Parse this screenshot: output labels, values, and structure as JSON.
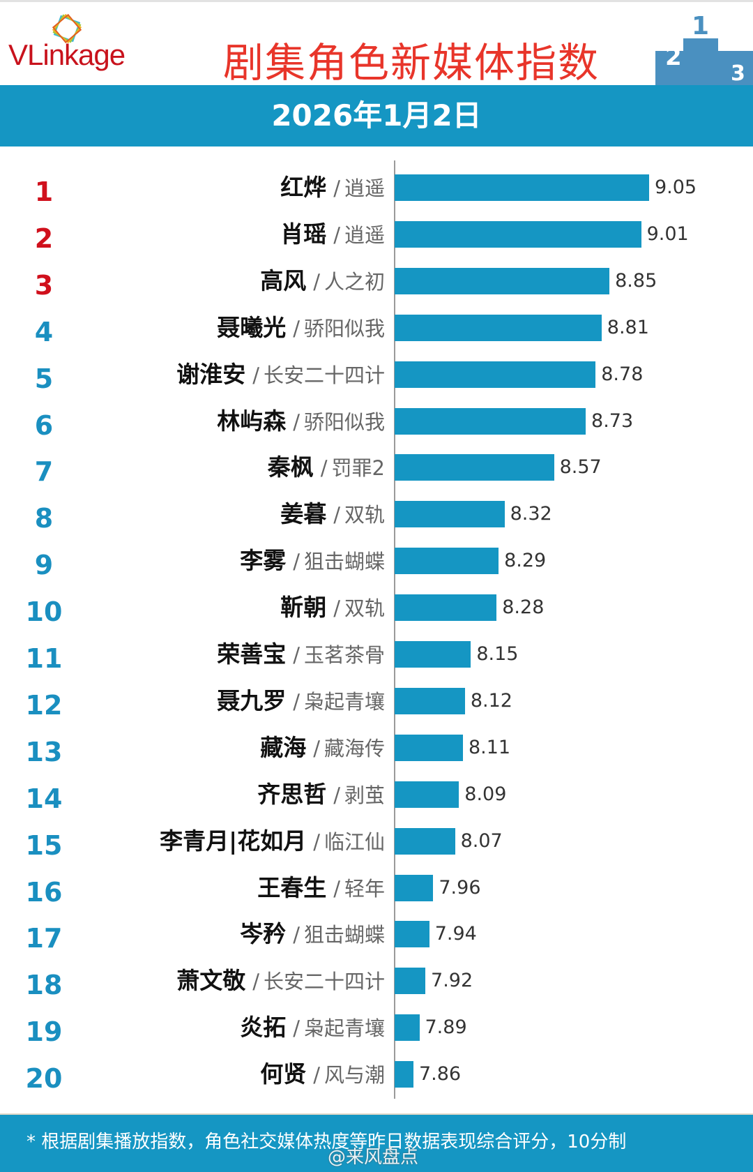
{
  "header": {
    "logo": "VLinkage",
    "title": "剧集角色新媒体指数",
    "date": "2026年1月2日"
  },
  "colors": {
    "accent_blue": "#1596c3",
    "title_red": "#e8352a",
    "top3_rank": "#d0101c",
    "rank_blue": "#1a8fc0"
  },
  "chart_data": {
    "type": "bar",
    "orientation": "horizontal",
    "rows": [
      {
        "rank": "1",
        "name": "红烨",
        "drama": "逍遥",
        "value": 9.05
      },
      {
        "rank": "2",
        "name": "肖瑶",
        "drama": "逍遥",
        "value": 9.01
      },
      {
        "rank": "3",
        "name": "高风",
        "drama": "人之初",
        "value": 8.85
      },
      {
        "rank": "4",
        "name": "聂曦光",
        "drama": "骄阳似我",
        "value": 8.81
      },
      {
        "rank": "5",
        "name": "谢淮安",
        "drama": "长安二十四计",
        "value": 8.78
      },
      {
        "rank": "6",
        "name": "林屿森",
        "drama": "骄阳似我",
        "value": 8.73
      },
      {
        "rank": "7",
        "name": "秦枫",
        "drama": "罚罪2",
        "value": 8.57
      },
      {
        "rank": "8",
        "name": "姜暮",
        "drama": "双轨",
        "value": 8.32
      },
      {
        "rank": "9",
        "name": "李雾",
        "drama": "狙击蝴蝶",
        "value": 8.29
      },
      {
        "rank": "10",
        "name": "靳朝",
        "drama": "双轨",
        "value": 8.28
      },
      {
        "rank": "11",
        "name": "荣善宝",
        "drama": "玉茗茶骨",
        "value": 8.15
      },
      {
        "rank": "12",
        "name": "聂九罗",
        "drama": "枭起青壤",
        "value": 8.12
      },
      {
        "rank": "13",
        "name": "藏海",
        "drama": "藏海传",
        "value": 8.11
      },
      {
        "rank": "14",
        "name": "齐思哲",
        "drama": "剥茧",
        "value": 8.09
      },
      {
        "rank": "15",
        "name": "李青月|花如月",
        "drama": "临江仙",
        "value": 8.07
      },
      {
        "rank": "16",
        "name": "王春生",
        "drama": "轻年",
        "value": 7.96
      },
      {
        "rank": "17",
        "name": "岑矜",
        "drama": "狙击蝴蝶",
        "value": 7.94
      },
      {
        "rank": "18",
        "name": "萧文敬",
        "drama": "长安二十四计",
        "value": 7.92
      },
      {
        "rank": "19",
        "name": "炎拓",
        "drama": "枭起青壤",
        "value": 7.89
      },
      {
        "rank": "20",
        "name": "何贤",
        "drama": "风与潮",
        "value": 7.86
      }
    ],
    "separator": "/",
    "grid": false
  },
  "footer": {
    "note": "* 根据剧集播放指数，角色社交媒体热度等昨日数据表现综合评分，10分制",
    "watermark": "@来风盘点"
  }
}
